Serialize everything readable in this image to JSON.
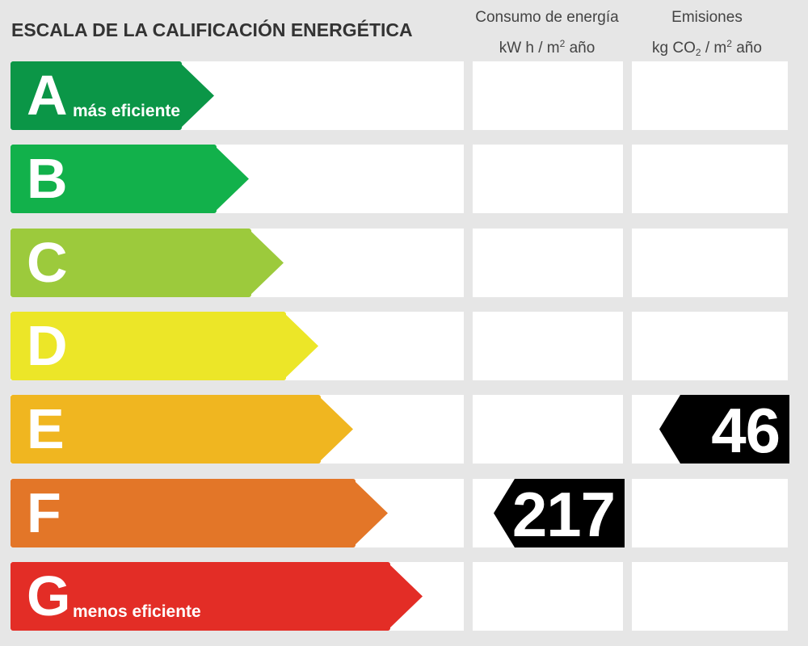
{
  "title": "ESCALA DE LA CALIFICACIÓN ENERGÉTICA",
  "columns": {
    "consumo": {
      "line1": "Consumo de energía",
      "line2a": "kW h  / m",
      "line2sup": "2",
      "line2b": " año"
    },
    "emisiones": {
      "line1": "Emisiones",
      "line2a": "kg CO",
      "line2sub": "2",
      "line2b": "  / m",
      "line2sup": "2",
      "line2c": " año"
    }
  },
  "chart_data": {
    "type": "energy-rating-scale",
    "bands": [
      {
        "letter": "A",
        "desc": "más eficiente",
        "color": "#0b9647"
      },
      {
        "letter": "B",
        "desc": "",
        "color": "#12b14b"
      },
      {
        "letter": "C",
        "desc": "",
        "color": "#9cca3c"
      },
      {
        "letter": "D",
        "desc": "",
        "color": "#ece628"
      },
      {
        "letter": "E",
        "desc": "",
        "color": "#f0b620"
      },
      {
        "letter": "F",
        "desc": "",
        "color": "#e37628"
      },
      {
        "letter": "G",
        "desc": "menos eficiente",
        "color": "#e32d26"
      }
    ],
    "consumo": {
      "value": "217",
      "band": "F"
    },
    "emisiones": {
      "value": "46",
      "band": "E"
    }
  }
}
